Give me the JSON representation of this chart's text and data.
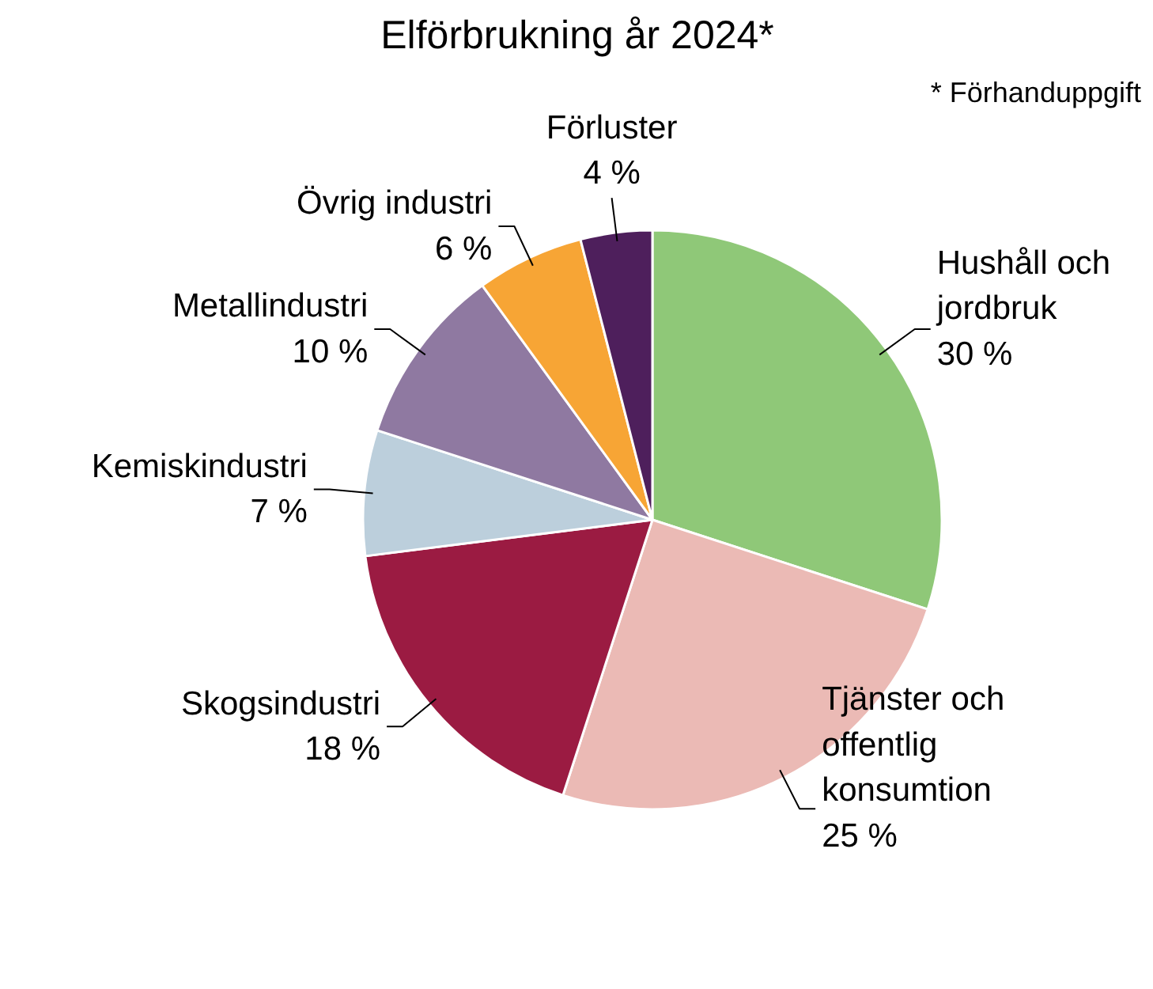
{
  "chart_data": {
    "type": "pie",
    "title": "Elförbrukning år 2024*",
    "categories": [
      "Hushåll och jordbruk",
      "Tjänster och offentlig konsumtion",
      "Skogsindustri",
      "Kemiskindustri",
      "Metallindustri",
      "Övrig industri",
      "Förluster"
    ],
    "values": [
      30,
      25,
      18,
      7,
      10,
      6,
      4
    ],
    "value_labels": [
      "30 %",
      "25 %",
      "18 %",
      "7 %",
      "10 %",
      "6 %",
      "4 %"
    ],
    "colors": [
      "#8fc878",
      "#ebbab5",
      "#9b1b42",
      "#bccfdc",
      "#8f79a1",
      "#f7a535",
      "#4e1f5c"
    ],
    "annotations": [
      "* Förhanduppgift"
    ]
  }
}
